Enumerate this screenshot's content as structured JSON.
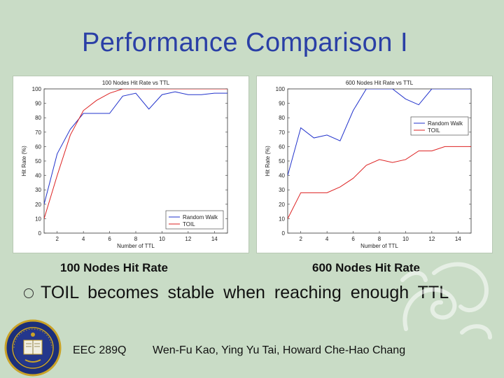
{
  "slide": {
    "title": "Performance Comparison I",
    "bullet": "TOIL becomes stable when reaching enough TTL",
    "footer_course": "EEC 289Q",
    "footer_authors": "Wen-Fu Kao,  Ying Yu Tai,  Howard Che-Hao Chang",
    "caption_left": "100 Nodes Hit Rate",
    "caption_right": "600 Nodes Hit Rate",
    "seal_icon": "university-seal-icon",
    "ornament_icon": "decorative-swirl-icon"
  },
  "chart_data": [
    {
      "type": "line",
      "title": "100 Nodes Hit Rate vs TTL",
      "xlabel": "Number of TTL",
      "ylabel": "Hit Rate (%)",
      "xlim": [
        1,
        15
      ],
      "ylim": [
        0,
        100
      ],
      "xticks": [
        2,
        4,
        6,
        8,
        10,
        12,
        14
      ],
      "yticks": [
        0,
        10,
        20,
        30,
        40,
        50,
        60,
        70,
        80,
        90,
        100
      ],
      "legend": "bottom-right",
      "series": [
        {
          "name": "Random Walk",
          "color": "#2233cc",
          "x": [
            1,
            2,
            3,
            4,
            5,
            6,
            7,
            8,
            9,
            10,
            11,
            12,
            13,
            14,
            15
          ],
          "y": [
            20,
            55,
            72,
            83,
            83,
            83,
            95,
            97,
            86,
            96,
            98,
            96,
            96,
            97,
            97
          ]
        },
        {
          "name": "TOIL",
          "color": "#dd2222",
          "x": [
            1,
            2,
            3,
            4,
            5,
            6,
            7,
            8,
            9,
            10,
            11,
            12,
            13,
            14,
            15
          ],
          "y": [
            10,
            40,
            68,
            85,
            92,
            97,
            100,
            100,
            100,
            100,
            100,
            100,
            100,
            100,
            100
          ]
        }
      ]
    },
    {
      "type": "line",
      "title": "600 Nodes Hit Rate vs TTL",
      "xlabel": "Number of TTL",
      "ylabel": "Hit Rate (%)",
      "xlim": [
        1,
        15
      ],
      "ylim": [
        0,
        100
      ],
      "xticks": [
        2,
        4,
        6,
        8,
        10,
        12,
        14
      ],
      "yticks": [
        0,
        10,
        20,
        30,
        40,
        50,
        60,
        70,
        80,
        90,
        100
      ],
      "legend": "top-right",
      "series": [
        {
          "name": "Random Walk",
          "color": "#2233cc",
          "x": [
            1,
            2,
            3,
            4,
            5,
            6,
            7,
            8,
            9,
            10,
            11,
            12,
            13,
            14,
            15
          ],
          "y": [
            40,
            73,
            66,
            68,
            64,
            85,
            100,
            100,
            100,
            93,
            89,
            100,
            100,
            100,
            100
          ]
        },
        {
          "name": "TOIL",
          "color": "#dd2222",
          "x": [
            1,
            2,
            3,
            4,
            5,
            6,
            7,
            8,
            9,
            10,
            11,
            12,
            13,
            14,
            15
          ],
          "y": [
            10,
            28,
            28,
            28,
            32,
            38,
            47,
            51,
            49,
            51,
            57,
            57,
            60,
            60,
            60
          ]
        }
      ]
    }
  ]
}
